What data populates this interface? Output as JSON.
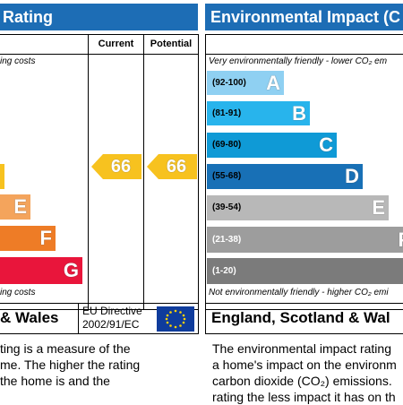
{
  "energy": {
    "header": "Rating",
    "col_current": "Current",
    "col_potential": "Potential",
    "top_note": "ing costs",
    "bottom_note": "ing costs",
    "current_value": "66",
    "potential_value": "66",
    "arrow_color": "#f7c21f",
    "bands": [
      {
        "letter": "",
        "color": "#f7c21f"
      },
      {
        "letter": "E",
        "color": "#f4a45c"
      },
      {
        "letter": "F",
        "color": "#ee7c26"
      },
      {
        "letter": "G",
        "color": "#e9153b"
      }
    ],
    "footer_region": "& Wales",
    "directive_line1": "EU Directive",
    "directive_line2": "2002/91/EC",
    "desc_lines": [
      "ting is a measure of the",
      "me. The higher the rating",
      "the home is and the",
      ""
    ]
  },
  "environment": {
    "header": "Environmental Impact (C",
    "top_note": "Very environmentally friendly - lower CO₂ em",
    "bottom_note": "Not environmentally friendly - higher CO₂ emi",
    "bands": [
      {
        "range": "(92-100)",
        "letter": "A",
        "color": "#8fd0f2"
      },
      {
        "range": "(81-91)",
        "letter": "B",
        "color": "#28b4ec"
      },
      {
        "range": "(69-80)",
        "letter": "C",
        "color": "#0f9ad6"
      },
      {
        "range": "(55-68)",
        "letter": "D",
        "color": "#1870b6"
      },
      {
        "range": "(39-54)",
        "letter": "E",
        "color": "#b8b8b8"
      },
      {
        "range": "(21-38)",
        "letter": "F",
        "color": "#9d9d9d"
      },
      {
        "range": "(1-20)",
        "letter": "",
        "color": "#7b7b7b"
      }
    ],
    "footer_region": "England, Scotland & Wal",
    "desc_lines": [
      "The environmental impact rating",
      "a home's impact on the environm",
      "carbon dioxide (CO₂) emissions.",
      "rating the less impact it has on th"
    ]
  }
}
